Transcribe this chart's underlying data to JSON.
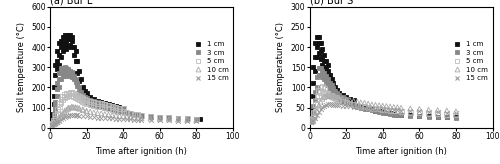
{
  "panel_a_title": "(a) Bur L",
  "panel_b_title": "(b) Bur S",
  "xlabel": "Time after ignition (h)",
  "ylabel": "Soil temperature (°C)",
  "panel_a_ylim": [
    0,
    600
  ],
  "panel_b_ylim": [
    0,
    300
  ],
  "xlim": [
    0,
    100
  ],
  "panel_a_yticks": [
    0,
    100,
    200,
    300,
    400,
    500,
    600
  ],
  "panel_b_yticks": [
    0,
    50,
    100,
    150,
    200,
    250,
    300
  ],
  "xticks": [
    0,
    20,
    40,
    60,
    80,
    100
  ],
  "legend_labels": [
    "1 cm",
    "3 cm",
    "5 cm",
    "10 cm",
    "15 cm"
  ],
  "colors": [
    "#111111",
    "#888888",
    "#bbbbbb",
    "#aaaaaa",
    "#999999"
  ],
  "markers": [
    "s",
    "s",
    "s",
    "^",
    "x"
  ],
  "mfc": [
    "#111111",
    "#888888",
    "none",
    "none",
    "none"
  ],
  "markersize": 3.5,
  "bur_l_1cm_x": [
    1,
    1,
    1,
    2,
    2,
    2,
    3,
    3,
    3,
    4,
    4,
    4,
    5,
    5,
    5,
    6,
    6,
    6,
    7,
    7,
    7,
    8,
    8,
    8,
    9,
    9,
    9,
    10,
    10,
    10,
    11,
    11,
    11,
    12,
    12,
    12,
    13,
    13,
    14,
    14,
    15,
    15,
    16,
    16,
    17,
    17,
    18,
    18,
    19,
    19,
    20,
    20,
    22,
    22,
    24,
    24,
    26,
    26,
    28,
    28,
    30,
    30,
    32,
    32,
    34,
    34,
    36,
    36,
    38,
    38,
    40,
    40,
    42,
    44,
    46,
    48,
    50,
    55,
    60,
    65,
    70,
    75,
    80,
    82
  ],
  "bur_l_1cm_y": [
    40,
    55,
    70,
    120,
    160,
    200,
    200,
    260,
    310,
    290,
    330,
    380,
    310,
    360,
    420,
    350,
    400,
    430,
    380,
    420,
    450,
    400,
    430,
    460,
    390,
    420,
    450,
    400,
    440,
    460,
    410,
    440,
    460,
    400,
    430,
    450,
    360,
    400,
    330,
    380,
    270,
    330,
    230,
    280,
    190,
    240,
    170,
    200,
    155,
    185,
    145,
    175,
    135,
    155,
    125,
    145,
    115,
    135,
    110,
    130,
    105,
    125,
    100,
    120,
    95,
    115,
    90,
    110,
    85,
    105,
    80,
    100,
    75,
    72,
    68,
    65,
    60,
    55,
    52,
    50,
    48,
    46,
    44,
    43
  ],
  "bur_l_3cm_x": [
    1,
    1,
    1,
    2,
    2,
    2,
    3,
    3,
    3,
    4,
    4,
    4,
    5,
    5,
    5,
    6,
    6,
    6,
    7,
    7,
    7,
    8,
    8,
    8,
    9,
    9,
    9,
    10,
    10,
    10,
    11,
    11,
    11,
    12,
    12,
    12,
    13,
    13,
    14,
    14,
    15,
    15,
    16,
    16,
    17,
    17,
    18,
    18,
    19,
    19,
    20,
    20,
    22,
    22,
    24,
    24,
    26,
    26,
    28,
    28,
    30,
    30,
    32,
    32,
    34,
    34,
    36,
    36,
    38,
    38,
    40,
    40,
    42,
    44,
    46,
    48,
    50,
    55,
    60,
    65,
    70,
    75,
    80
  ],
  "bur_l_3cm_y": [
    15,
    20,
    25,
    40,
    55,
    70,
    90,
    110,
    130,
    160,
    190,
    220,
    200,
    240,
    270,
    240,
    270,
    295,
    255,
    275,
    295,
    260,
    280,
    300,
    255,
    275,
    295,
    260,
    275,
    290,
    255,
    270,
    280,
    250,
    265,
    275,
    240,
    255,
    225,
    240,
    205,
    220,
    180,
    200,
    165,
    180,
    150,
    165,
    140,
    155,
    130,
    148,
    120,
    138,
    115,
    132,
    110,
    128,
    105,
    123,
    100,
    118,
    98,
    115,
    93,
    110,
    88,
    105,
    83,
    100,
    80,
    97,
    75,
    72,
    68,
    65,
    62,
    58,
    55,
    52,
    50,
    48,
    46
  ],
  "bur_l_5cm_x": [
    1,
    1,
    2,
    2,
    3,
    3,
    4,
    4,
    5,
    5,
    6,
    6,
    7,
    7,
    8,
    8,
    9,
    9,
    10,
    10,
    11,
    11,
    12,
    12,
    13,
    13,
    14,
    14,
    15,
    15,
    16,
    16,
    17,
    17,
    18,
    18,
    19,
    19,
    20,
    20,
    22,
    22,
    24,
    24,
    26,
    26,
    28,
    28,
    30,
    30,
    32,
    32,
    34,
    34,
    36,
    36,
    38,
    38,
    40,
    40,
    42,
    44,
    46,
    48,
    50,
    55,
    60,
    65,
    70,
    75,
    80
  ],
  "bur_l_5cm_y": [
    15,
    20,
    25,
    35,
    45,
    60,
    70,
    90,
    105,
    120,
    125,
    140,
    140,
    155,
    150,
    165,
    155,
    170,
    158,
    172,
    160,
    175,
    160,
    175,
    155,
    170,
    150,
    165,
    145,
    160,
    140,
    155,
    135,
    150,
    130,
    145,
    125,
    140,
    120,
    135,
    115,
    130,
    110,
    125,
    108,
    122,
    105,
    119,
    100,
    116,
    98,
    113,
    93,
    108,
    88,
    103,
    83,
    98,
    80,
    95,
    75,
    72,
    68,
    65,
    60,
    56,
    53,
    50,
    48,
    46,
    44
  ],
  "bur_l_10cm_x": [
    1,
    2,
    3,
    4,
    4,
    5,
    5,
    6,
    6,
    7,
    8,
    8,
    9,
    10,
    10,
    11,
    12,
    12,
    13,
    14,
    14,
    15,
    16,
    16,
    18,
    18,
    20,
    20,
    22,
    24,
    26,
    28,
    30,
    32,
    34,
    36,
    38,
    40,
    42,
    44,
    46,
    48,
    50,
    55,
    60,
    65,
    70,
    75,
    80
  ],
  "bur_l_10cm_y": [
    15,
    18,
    22,
    28,
    35,
    40,
    50,
    55,
    65,
    72,
    78,
    85,
    90,
    95,
    100,
    100,
    102,
    105,
    103,
    102,
    100,
    100,
    98,
    95,
    92,
    88,
    85,
    82,
    80,
    77,
    74,
    72,
    69,
    66,
    63,
    61,
    59,
    57,
    55,
    53,
    51,
    49,
    48,
    46,
    44,
    42,
    41,
    40,
    39
  ],
  "bur_l_15cm_x": [
    1,
    2,
    3,
    4,
    5,
    6,
    7,
    8,
    9,
    10,
    11,
    12,
    13,
    14,
    15,
    16,
    18,
    20,
    22,
    24,
    26,
    28,
    30,
    32,
    34,
    36,
    38,
    40,
    42,
    44,
    46,
    48,
    50,
    55,
    60,
    65,
    70,
    75,
    80
  ],
  "bur_l_15cm_y": [
    15,
    18,
    22,
    28,
    35,
    42,
    48,
    53,
    57,
    60,
    62,
    63,
    64,
    63,
    62,
    61,
    59,
    57,
    55,
    53,
    51,
    50,
    49,
    48,
    47,
    46,
    45,
    44,
    43,
    42,
    41,
    40,
    40,
    39,
    38,
    37,
    36,
    35,
    34
  ],
  "bur_s_1cm_x": [
    1,
    1,
    1,
    2,
    2,
    2,
    3,
    3,
    3,
    4,
    4,
    4,
    5,
    5,
    5,
    6,
    6,
    6,
    7,
    7,
    7,
    8,
    8,
    8,
    9,
    9,
    9,
    10,
    10,
    10,
    11,
    11,
    12,
    12,
    13,
    13,
    14,
    14,
    15,
    15,
    16,
    16,
    18,
    18,
    20,
    20,
    22,
    22,
    24,
    24,
    26,
    28,
    30,
    32,
    34,
    36,
    38,
    40,
    42,
    44,
    46,
    48,
    50,
    55,
    60,
    65,
    70,
    75,
    80
  ],
  "bur_s_1cm_y": [
    25,
    35,
    50,
    80,
    110,
    150,
    140,
    175,
    210,
    175,
    200,
    225,
    185,
    210,
    225,
    170,
    190,
    210,
    155,
    175,
    195,
    145,
    165,
    180,
    135,
    150,
    165,
    125,
    140,
    155,
    115,
    130,
    105,
    120,
    95,
    110,
    88,
    100,
    82,
    93,
    76,
    87,
    72,
    82,
    66,
    76,
    62,
    72,
    58,
    68,
    55,
    52,
    50,
    48,
    46,
    43,
    41,
    39,
    37,
    36,
    34,
    33,
    32,
    31,
    30,
    29,
    28,
    28,
    27
  ],
  "bur_s_3cm_x": [
    1,
    1,
    2,
    2,
    3,
    3,
    4,
    4,
    5,
    5,
    6,
    6,
    7,
    7,
    8,
    8,
    9,
    9,
    10,
    10,
    11,
    11,
    12,
    12,
    13,
    13,
    14,
    14,
    15,
    15,
    16,
    16,
    18,
    18,
    20,
    20,
    22,
    24,
    26,
    28,
    30,
    32,
    34,
    36,
    38,
    40,
    42,
    44,
    46,
    48,
    50,
    55,
    60,
    65,
    70,
    75,
    80
  ],
  "bur_s_3cm_y": [
    18,
    25,
    38,
    55,
    68,
    90,
    100,
    125,
    130,
    148,
    130,
    148,
    125,
    140,
    120,
    135,
    112,
    128,
    105,
    120,
    98,
    112,
    92,
    105,
    85,
    98,
    80,
    92,
    75,
    87,
    70,
    82,
    65,
    76,
    61,
    71,
    58,
    55,
    52,
    50,
    48,
    46,
    44,
    42,
    40,
    38,
    36,
    35,
    33,
    32,
    31,
    30,
    29,
    28,
    27,
    26,
    25
  ],
  "bur_s_5cm_x": [
    1,
    1,
    2,
    2,
    3,
    3,
    4,
    4,
    5,
    5,
    6,
    6,
    7,
    7,
    8,
    8,
    9,
    10,
    10,
    11,
    12,
    12,
    13,
    14,
    14,
    15,
    16,
    16,
    18,
    20,
    22,
    24,
    26,
    28,
    30,
    32,
    34,
    36,
    38,
    40,
    42,
    44,
    46,
    48,
    50,
    55,
    60,
    65,
    70,
    75,
    80
  ],
  "bur_s_5cm_y": [
    15,
    22,
    25,
    38,
    40,
    58,
    60,
    78,
    80,
    92,
    88,
    100,
    90,
    102,
    88,
    98,
    85,
    82,
    85,
    80,
    77,
    80,
    75,
    72,
    76,
    70,
    68,
    71,
    65,
    62,
    60,
    58,
    56,
    54,
    52,
    50,
    49,
    48,
    47,
    46,
    45,
    44,
    43,
    42,
    41,
    39,
    38,
    36,
    35,
    33,
    32
  ],
  "bur_s_10cm_x": [
    1,
    2,
    3,
    4,
    5,
    6,
    7,
    8,
    9,
    10,
    11,
    12,
    13,
    14,
    15,
    16,
    18,
    20,
    22,
    24,
    26,
    28,
    30,
    32,
    34,
    36,
    38,
    40,
    42,
    44,
    46,
    48,
    50,
    55,
    60,
    65,
    70,
    75,
    80
  ],
  "bur_s_10cm_y": [
    15,
    20,
    30,
    42,
    55,
    65,
    72,
    76,
    78,
    80,
    80,
    80,
    78,
    77,
    76,
    75,
    73,
    71,
    69,
    67,
    65,
    63,
    62,
    60,
    58,
    57,
    56,
    55,
    54,
    53,
    52,
    51,
    50,
    48,
    47,
    45,
    44,
    43,
    41
  ],
  "bur_s_15cm_x": [
    1,
    2,
    3,
    4,
    5,
    6,
    7,
    8,
    9,
    10,
    11,
    12,
    13,
    14,
    15,
    16,
    18,
    20,
    22,
    24,
    26,
    28,
    30,
    32,
    34,
    36,
    38,
    40,
    42,
    44,
    46,
    48,
    50,
    55,
    60,
    65,
    70,
    75,
    80
  ],
  "bur_s_15cm_y": [
    14,
    18,
    24,
    32,
    40,
    47,
    52,
    55,
    57,
    58,
    58,
    58,
    57,
    57,
    56,
    56,
    55,
    54,
    53,
    52,
    51,
    50,
    49,
    48,
    47,
    47,
    46,
    46,
    45,
    45,
    44,
    44,
    43,
    42,
    41,
    40,
    39,
    38,
    37
  ]
}
